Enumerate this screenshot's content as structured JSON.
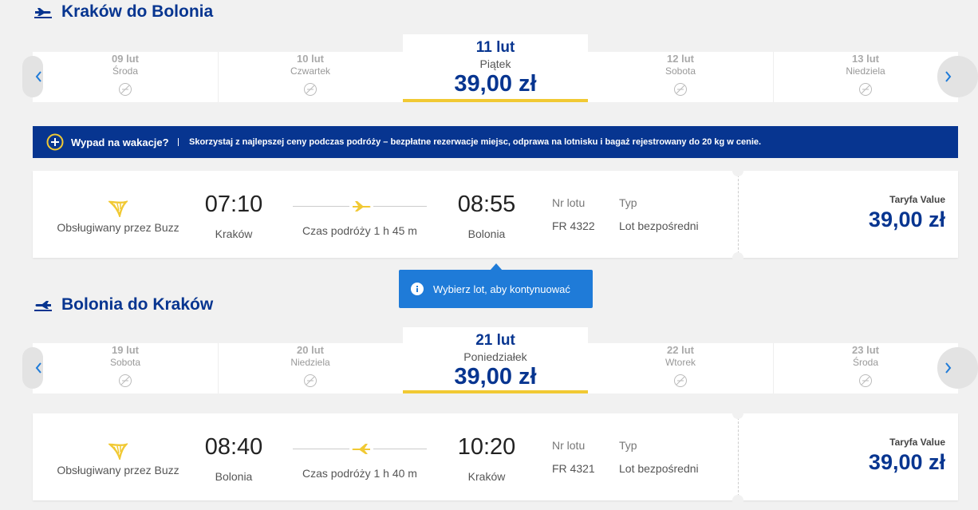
{
  "trips": [
    {
      "title": "Kraków do Bolonia",
      "dates": [
        {
          "date": "09 lut",
          "day": "Środa"
        },
        {
          "date": "10 lut",
          "day": "Czwartek"
        },
        {
          "date": "11 lut",
          "day": "Piątek",
          "price": "39,00 zł"
        },
        {
          "date": "12 lut",
          "day": "Sobota"
        },
        {
          "date": "13 lut",
          "day": "Niedziela"
        }
      ],
      "flight": {
        "operator": "Obsługiwany przez Buzz",
        "dep_time": "07:10",
        "dep_city": "Kraków",
        "duration": "Czas podróży 1 h 45 m",
        "arr_time": "08:55",
        "arr_city": "Bolonia",
        "flight_no_label": "Nr lotu",
        "flight_no": "FR 4322",
        "type_label": "Typ",
        "type": "Lot bezpośredni",
        "fare_label": "Taryfa Value",
        "price": "39,00 zł"
      }
    },
    {
      "title": "Bolonia do Kraków",
      "dates": [
        {
          "date": "19 lut",
          "day": "Sobota"
        },
        {
          "date": "20 lut",
          "day": "Niedziela"
        },
        {
          "date": "21 lut",
          "day": "Poniedziałek",
          "price": "39,00 zł"
        },
        {
          "date": "22 lut",
          "day": "Wtorek"
        },
        {
          "date": "23 lut",
          "day": "Środa"
        }
      ],
      "flight": {
        "operator": "Obsługiwany przez Buzz",
        "dep_time": "08:40",
        "dep_city": "Bolonia",
        "duration": "Czas podróży 1 h 40 m",
        "arr_time": "10:20",
        "arr_city": "Kraków",
        "flight_no_label": "Nr lotu",
        "flight_no": "FR 4321",
        "type_label": "Typ",
        "type": "Lot bezpośredni",
        "fare_label": "Taryfa Value",
        "price": "39,00 zł"
      }
    }
  ],
  "banner": {
    "title": "Wypad na wakacje?",
    "text": "Skorzystaj z najlepszej ceny podczas podróży – bezpłatne rezerwacje miejsc, odprawa na lotnisku i bagaż rejestrowany do 20 kg w cenie."
  },
  "tooltip": "Wybierz lot, aby kontynuować"
}
